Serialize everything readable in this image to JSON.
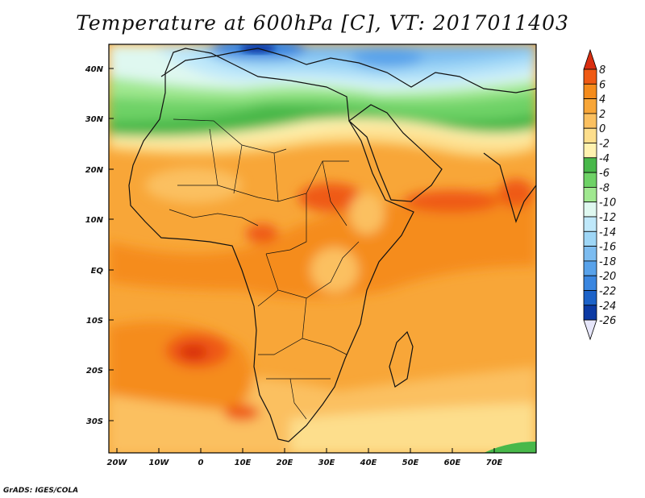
{
  "title": "Temperature at 600hPa [C], VT: 2017011403",
  "credit": "GrADS: IGES/COLA",
  "map": {
    "lat_labels": [
      "40N",
      "30N",
      "20N",
      "10N",
      "EQ",
      "10S",
      "20S",
      "30S"
    ],
    "lon_labels": [
      "20W",
      "10W",
      "0",
      "10E",
      "20E",
      "30E",
      "40E",
      "50E",
      "60E",
      "70E"
    ]
  },
  "colorbar": {
    "labels": [
      "8",
      "6",
      "4",
      "2",
      "0",
      "-2",
      "-4",
      "-6",
      "-8",
      "-10",
      "-12",
      "-14",
      "-16",
      "-18",
      "-20",
      "-22",
      "-24",
      "-26"
    ],
    "colors": [
      "#d92e10",
      "#ef5a14",
      "#f58c1c",
      "#f8a638",
      "#fbc060",
      "#fdde8c",
      "#fff2b0",
      "#48b84a",
      "#6ed266",
      "#a0e890",
      "#dff8f0",
      "#bfe8fa",
      "#9ed6f6",
      "#7cbcf0",
      "#58a2ea",
      "#3a86e0",
      "#1c62c8",
      "#0c3aa4",
      "#0a1e6a"
    ]
  }
}
